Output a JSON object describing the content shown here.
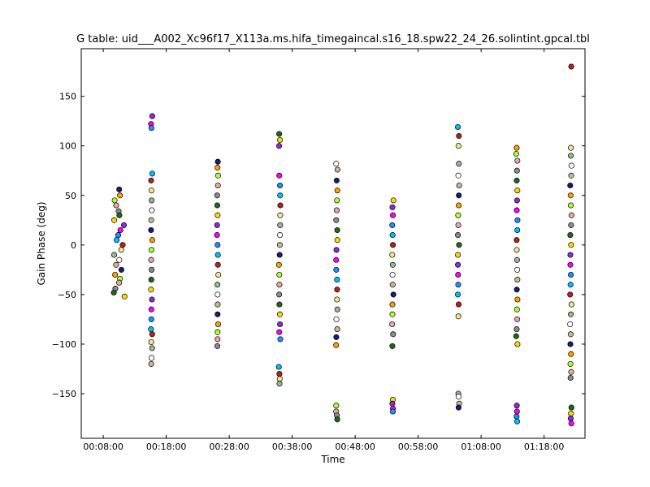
{
  "chart_data": {
    "type": "scatter",
    "title": "G table: uid___A002_Xc96f17_X113a.ms.hifa_timegaincal.s16_18.spw22_24_26.solintint.gpcal.tbl",
    "xlabel": "Time",
    "ylabel": "Gain Phase (deg)",
    "xlim": [
      "00:04:30",
      "01:24:30"
    ],
    "ylim": [
      -195,
      198
    ],
    "grid": false,
    "legend": "none",
    "x_ticks": [
      "00:08:00",
      "00:18:00",
      "00:28:00",
      "00:38:00",
      "00:48:00",
      "00:58:00",
      "01:08:00",
      "01:18:00"
    ],
    "y_ticks": [
      -150,
      -100,
      -50,
      0,
      50,
      100,
      150
    ],
    "marker_colors": [
      "#1c1c6e",
      "#ff9f00",
      "#adff2f",
      "#e8a8a0",
      "#8b8b8b",
      "#1a6b1a",
      "#ffd700",
      "#8a2be2",
      "#ff00ff",
      "#1e90ff",
      "#00bfff",
      "#b22222",
      "#f0e68c",
      "#8fbc8f",
      "#ffffff",
      "#d2b48c"
    ],
    "scans": [
      {
        "start": "00:09:35",
        "end": "00:11:30",
        "ymin": -52,
        "ymax": 56,
        "values": [
          56,
          50,
          45,
          40,
          34,
          30,
          25,
          20,
          15,
          10,
          5,
          0,
          -5,
          -10,
          -15,
          -20,
          -25,
          -30,
          -34,
          -38,
          -44,
          -48,
          -52
        ]
      },
      {
        "time": "00:15:40",
        "ymin": -120,
        "ymax": 130,
        "values": [
          130,
          122,
          118,
          72,
          65,
          55,
          45,
          35,
          25,
          15,
          5,
          -5,
          -15,
          -25,
          -35,
          -45,
          -55,
          -65,
          -75,
          -85,
          -90,
          -98,
          -104,
          -114,
          -120
        ]
      },
      {
        "time": "00:26:10",
        "ymin": -102,
        "ymax": 84,
        "values": [
          84,
          78,
          70,
          60,
          50,
          40,
          30,
          20,
          10,
          0,
          -10,
          -20,
          -30,
          -40,
          -50,
          -60,
          -70,
          -80,
          -88,
          -95,
          -102
        ]
      },
      {
        "time": "00:36:00",
        "ymin": -140,
        "ymax": 112,
        "values": [
          112,
          106,
          100,
          70,
          60,
          50,
          40,
          30,
          20,
          10,
          0,
          -10,
          -20,
          -30,
          -40,
          -50,
          -60,
          -70,
          -80,
          -88,
          -95,
          -123,
          -130,
          -135,
          -140
        ]
      },
      {
        "time": "00:45:05",
        "ymin": -176,
        "ymax": 82,
        "values": [
          82,
          76,
          65,
          55,
          45,
          35,
          25,
          15,
          5,
          -5,
          -15,
          -25,
          -35,
          -45,
          -55,
          -65,
          -75,
          -85,
          -93,
          -101,
          -162,
          -168,
          -172,
          -176
        ]
      },
      {
        "time": "00:54:00",
        "ymin": -168,
        "ymax": 45,
        "values": [
          45,
          38,
          30,
          20,
          10,
          0,
          -10,
          -20,
          -30,
          -40,
          -50,
          -60,
          -70,
          -80,
          -90,
          -102,
          -156,
          -160,
          -165,
          -168
        ]
      },
      {
        "time": "01:04:25",
        "ymin": -164,
        "ymax": 119,
        "values": [
          119,
          110,
          100,
          82,
          70,
          60,
          50,
          40,
          30,
          20,
          10,
          0,
          -10,
          -20,
          -30,
          -40,
          -50,
          -60,
          -72,
          -150,
          -153,
          -160,
          -164
        ]
      },
      {
        "time": "01:13:40",
        "ymin": -178,
        "ymax": 98,
        "values": [
          98,
          92,
          85,
          75,
          65,
          55,
          45,
          35,
          25,
          15,
          5,
          -5,
          -15,
          -25,
          -35,
          -45,
          -55,
          -65,
          -75,
          -85,
          -92,
          -100,
          -162,
          -168,
          -173,
          -178
        ]
      },
      {
        "time": "01:22:15",
        "ymin": -180,
        "ymax": 180,
        "values": [
          180,
          98,
          90,
          80,
          70,
          60,
          50,
          40,
          30,
          20,
          10,
          0,
          -10,
          -20,
          -30,
          -40,
          -50,
          -60,
          -70,
          -80,
          -90,
          -100,
          -110,
          -120,
          -128,
          -134,
          -164,
          -170,
          -175,
          -180
        ]
      }
    ]
  }
}
